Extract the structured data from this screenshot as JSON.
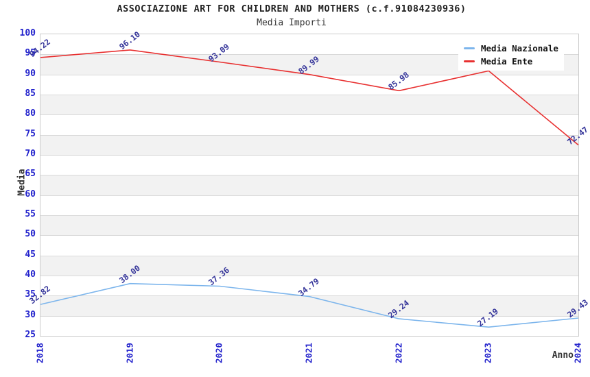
{
  "header": {
    "title": "ASSOCIAZIONE ART FOR CHILDREN AND MOTHERS (c.f.91084230936)",
    "subtitle": "Media Importi"
  },
  "chart_data": {
    "type": "line",
    "title": "ASSOCIAZIONE ART FOR CHILDREN AND MOTHERS (c.f.91084230936)",
    "subtitle": "Media Importi",
    "xlabel": "Anno",
    "ylabel": "Media",
    "categories": [
      "2018",
      "2019",
      "2020",
      "2021",
      "2022",
      "2023",
      "2024"
    ],
    "series": [
      {
        "name": "Media Nazionale",
        "color": "#7cb5ec",
        "values": [
          32.82,
          38.0,
          37.36,
          34.79,
          29.24,
          27.19,
          29.43
        ],
        "point_labels": [
          "32.82",
          "38.00",
          "37.36",
          "34.79",
          "29.24",
          "27.19",
          "29.43"
        ]
      },
      {
        "name": "Media Ente",
        "color": "#e83030",
        "values": [
          94.22,
          96.1,
          93.09,
          89.99,
          85.98,
          90.9,
          72.47
        ],
        "point_labels": [
          "94.22",
          "96.10",
          "93.09",
          "89.99",
          "85.98",
          null,
          "72.47"
        ]
      }
    ],
    "ylim": [
      25,
      100
    ],
    "ytick_step": 5,
    "grid": true,
    "band_colors": [
      "#ffffff",
      "#f2f2f2"
    ],
    "legend_position": "top-right"
  },
  "colors": {
    "axis_tick_label": "#2222cc",
    "data_label": "#333399",
    "gridline": "#d9d9d9",
    "plot_border": "#cccccc",
    "band_gray": "#f2f2f2",
    "title_text": "#222222"
  }
}
